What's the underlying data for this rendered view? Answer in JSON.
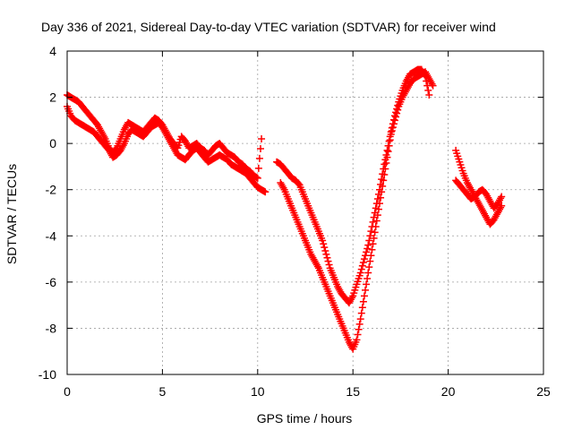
{
  "chart_data": {
    "type": "scatter",
    "title": "Day 336 of 2021, Sidereal Day-to-day VTEC variation (SDTVAR) for receiver wind",
    "xlabel": "GPS time / hours",
    "ylabel": "SDTVAR / TECUs",
    "xlim": [
      0,
      25
    ],
    "ylim": [
      -10,
      4
    ],
    "xticks": [
      0,
      5,
      10,
      15,
      20,
      25
    ],
    "yticks": [
      -10,
      -8,
      -6,
      -4,
      -2,
      0,
      2,
      4
    ],
    "grid": true,
    "marker": "+",
    "color": "#ff0000",
    "series": [
      {
        "name": "segment-1",
        "x": [
          0.0,
          0.2,
          0.4,
          0.6,
          0.8,
          1.0,
          1.2,
          1.4,
          1.6,
          1.8,
          2.0,
          2.2,
          2.4,
          2.6,
          2.8,
          3.0,
          3.2,
          3.4,
          3.6,
          3.8,
          4.0,
          4.2,
          4.4,
          4.6,
          4.8,
          5.0,
          5.2,
          5.4,
          5.6,
          5.8,
          6.0,
          6.2,
          6.4,
          6.6,
          6.8,
          7.0,
          7.2,
          7.4,
          7.6,
          7.8,
          8.0,
          8.2,
          8.4,
          8.6,
          8.8,
          9.0,
          9.2,
          9.4,
          9.6,
          9.8,
          10.0,
          10.2,
          10.4
        ],
        "y": [
          1.6,
          1.2,
          1.0,
          0.9,
          0.8,
          0.7,
          0.6,
          0.5,
          0.3,
          0.1,
          -0.1,
          -0.3,
          -0.6,
          -0.5,
          -0.3,
          0.0,
          0.4,
          0.6,
          0.5,
          0.4,
          0.3,
          0.5,
          0.7,
          0.8,
          0.9,
          0.7,
          0.4,
          0.1,
          -0.2,
          -0.5,
          -0.6,
          -0.7,
          -0.5,
          -0.3,
          -0.2,
          -0.4,
          -0.6,
          -0.8,
          -0.7,
          -0.6,
          -0.5,
          -0.6,
          -0.7,
          -0.9,
          -1.0,
          -1.1,
          -1.2,
          -1.3,
          -1.5,
          -1.7,
          -1.9,
          -2.0,
          -2.1
        ]
      },
      {
        "name": "segment-1-upper",
        "x": [
          0.0,
          0.2,
          0.4,
          0.6,
          0.8,
          1.0,
          1.2,
          1.4,
          1.6,
          1.8,
          2.0,
          2.2,
          2.4,
          2.6,
          2.8,
          3.0,
          3.2,
          3.4,
          3.6,
          3.8,
          4.0,
          4.2,
          4.4,
          4.6,
          4.8,
          5.0,
          5.2,
          5.4,
          5.6,
          5.8,
          6.0,
          6.2,
          6.4,
          6.6,
          6.8,
          7.0,
          7.2,
          7.4,
          7.6,
          7.8,
          8.0,
          8.2,
          8.4,
          8.6,
          8.8,
          9.0,
          9.2,
          9.4,
          9.6,
          9.8,
          10.0,
          10.2
        ],
        "y": [
          2.1,
          2.0,
          1.9,
          1.8,
          1.6,
          1.4,
          1.2,
          1.0,
          0.8,
          0.5,
          0.2,
          -0.2,
          -0.4,
          -0.2,
          0.2,
          0.6,
          0.9,
          0.8,
          0.7,
          0.6,
          0.5,
          0.7,
          0.9,
          1.1,
          1.0,
          0.8,
          0.5,
          0.2,
          0.0,
          -0.2,
          0.3,
          0.1,
          -0.2,
          -0.1,
          0.0,
          -0.2,
          -0.3,
          -0.5,
          -0.3,
          -0.1,
          0.0,
          -0.2,
          -0.4,
          -0.5,
          -0.6,
          -0.8,
          -0.9,
          -1.1,
          -1.2,
          -1.4,
          -1.5,
          0.2
        ]
      },
      {
        "name": "segment-2",
        "x": [
          11.2,
          11.4,
          11.6,
          11.8,
          12.0,
          12.2,
          12.4,
          12.6,
          12.8,
          13.0,
          13.2,
          13.4,
          13.6,
          13.8,
          14.0,
          14.2,
          14.4,
          14.6,
          14.8,
          15.0,
          15.2,
          15.4,
          15.6,
          15.8,
          16.0,
          16.2,
          16.4,
          16.6,
          16.8,
          17.0,
          17.2,
          17.4,
          17.6,
          17.8,
          18.0,
          18.2,
          18.4,
          18.6,
          18.8,
          19.0,
          19.2
        ],
        "y": [
          -1.7,
          -2.0,
          -2.4,
          -2.8,
          -3.2,
          -3.6,
          -4.0,
          -4.4,
          -4.8,
          -5.1,
          -5.4,
          -5.8,
          -6.2,
          -6.6,
          -7.0,
          -7.4,
          -7.8,
          -8.2,
          -8.6,
          -8.9,
          -8.5,
          -7.6,
          -6.6,
          -5.6,
          -4.6,
          -3.6,
          -2.6,
          -1.6,
          -0.6,
          0.4,
          1.0,
          1.6,
          2.0,
          2.3,
          2.6,
          2.8,
          2.9,
          3.0,
          3.1,
          2.8,
          2.5
        ]
      },
      {
        "name": "segment-2-upper",
        "x": [
          11.0,
          11.2,
          11.4,
          11.6,
          11.8,
          12.0,
          12.2,
          12.4,
          12.6,
          12.8,
          13.0,
          13.2,
          13.4,
          13.6,
          13.8,
          14.0,
          14.2,
          14.4,
          14.6,
          14.8,
          15.0,
          15.2,
          15.4,
          15.6,
          15.8,
          16.0,
          16.2,
          16.4,
          16.6,
          16.8,
          17.0,
          17.2,
          17.4,
          17.6,
          17.8,
          18.0,
          18.2,
          18.4,
          18.6,
          18.8,
          19.0
        ],
        "y": [
          -0.8,
          -0.9,
          -1.1,
          -1.3,
          -1.5,
          -1.6,
          -1.8,
          -2.2,
          -2.6,
          -3.0,
          -3.4,
          -3.8,
          -4.2,
          -4.8,
          -5.4,
          -5.8,
          -6.2,
          -6.5,
          -6.7,
          -6.9,
          -6.6,
          -6.1,
          -5.6,
          -5.0,
          -4.4,
          -3.6,
          -2.8,
          -2.0,
          -1.1,
          -0.3,
          0.5,
          1.2,
          1.8,
          2.3,
          2.7,
          3.0,
          3.1,
          3.2,
          3.2,
          2.9,
          2.1
        ]
      },
      {
        "name": "segment-3",
        "x": [
          20.4,
          20.6,
          20.8,
          21.0,
          21.2,
          21.4,
          21.6,
          21.8,
          22.0,
          22.2,
          22.4,
          22.6,
          22.8
        ],
        "y": [
          -0.3,
          -0.8,
          -1.3,
          -1.7,
          -2.0,
          -2.3,
          -2.6,
          -2.9,
          -3.2,
          -3.5,
          -3.3,
          -3.0,
          -2.7
        ]
      },
      {
        "name": "segment-3-upper",
        "x": [
          20.4,
          20.6,
          20.8,
          21.0,
          21.2,
          21.4,
          21.6,
          21.8,
          22.0,
          22.2,
          22.4,
          22.6,
          22.8
        ],
        "y": [
          -1.6,
          -1.8,
          -2.0,
          -2.2,
          -2.4,
          -2.3,
          -2.1,
          -2.0,
          -2.2,
          -2.5,
          -2.8,
          -2.6,
          -2.3
        ]
      }
    ]
  }
}
